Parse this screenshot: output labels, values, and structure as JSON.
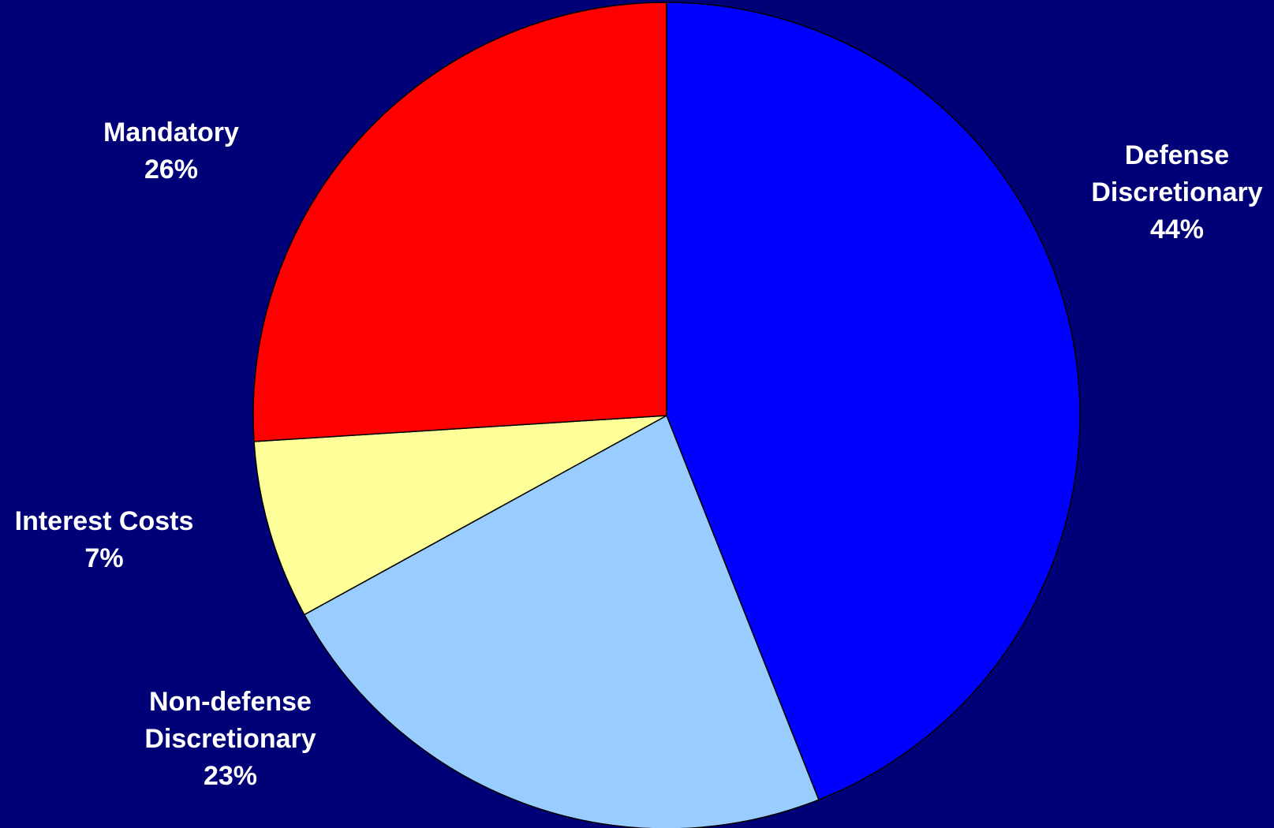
{
  "chart_data": {
    "type": "pie",
    "title": "",
    "background_color": "#000077",
    "start_angle_deg": 0,
    "direction": "clockwise",
    "slices": [
      {
        "name": "Defense",
        "name_line2": "Discretionary",
        "percent_label": "44%",
        "value": 44,
        "color": "#0000ff"
      },
      {
        "name": "Non-defense",
        "name_line2": "Discretionary",
        "percent_label": "23%",
        "value": 23,
        "color": "#99ccff"
      },
      {
        "name": "Interest Costs",
        "name_line2": "",
        "percent_label": "7%",
        "value": 7,
        "color": "#ffff99"
      },
      {
        "name": "Mandatory",
        "name_line2": "",
        "percent_label": "26%",
        "value": 26,
        "color": "#ff0000"
      }
    ]
  }
}
